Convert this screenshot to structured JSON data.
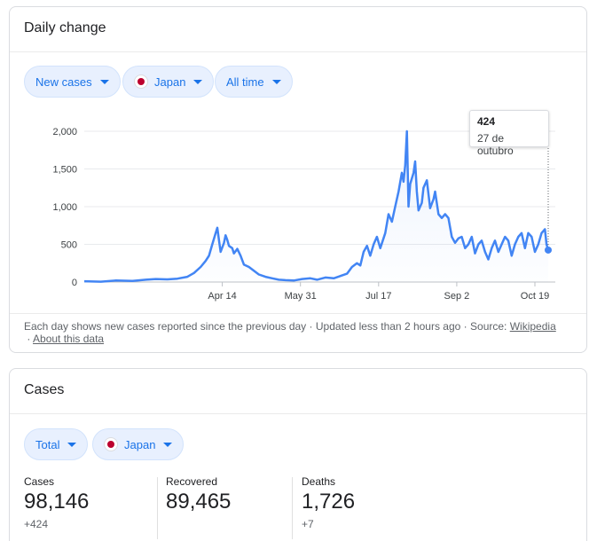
{
  "daily_card": {
    "title": "Daily change",
    "chips": {
      "metric": "New cases",
      "country": "Japan",
      "range": "All time"
    },
    "tooltip": {
      "value": "424",
      "date": "27 de outubro"
    },
    "footer": {
      "note": "Each day shows new cases reported since the previous day",
      "updated": "Updated less than 2 hours ago",
      "source_label": "Source:",
      "source_link": "Wikipedia",
      "about_link": "About this data"
    }
  },
  "cases_card": {
    "title": "Cases",
    "chips": {
      "metric": "Total",
      "country": "Japan"
    },
    "stats": [
      {
        "label": "Cases",
        "value": "98,146",
        "delta": "+424"
      },
      {
        "label": "Recovered",
        "value": "89,465",
        "delta": ""
      },
      {
        "label": "Deaths",
        "value": "1,726",
        "delta": "+7"
      }
    ]
  },
  "colors": {
    "line": "#4285f4",
    "chip_bg": "#e8f0fe",
    "chip_text": "#1a73e8",
    "flag_red": "#bc002d"
  },
  "chart_data": {
    "type": "area",
    "title": "",
    "xlabel": "",
    "ylabel": "",
    "ylim": [
      0,
      2000
    ],
    "y_ticks": [
      0,
      500,
      1000,
      1500,
      2000
    ],
    "y_tick_labels": [
      "0",
      "500",
      "1,000",
      "1,500",
      "2,000"
    ],
    "x_tick_labels": [
      "Apr 14",
      "May 31",
      "Jul 17",
      "Sep 2",
      "Oct 19"
    ],
    "x_start": "2020-01-22",
    "x_end": "2020-10-27",
    "x_ticks": [
      "2020-04-14",
      "2020-05-31",
      "2020-07-17",
      "2020-09-02",
      "2020-10-19"
    ],
    "grid": "horizontal",
    "series": [
      {
        "name": "New cases",
        "points": [
          [
            "2020-01-22",
            10
          ],
          [
            "2020-02-01",
            5
          ],
          [
            "2020-02-10",
            20
          ],
          [
            "2020-02-20",
            15
          ],
          [
            "2020-02-28",
            30
          ],
          [
            "2020-03-05",
            40
          ],
          [
            "2020-03-12",
            35
          ],
          [
            "2020-03-18",
            45
          ],
          [
            "2020-03-24",
            70
          ],
          [
            "2020-03-28",
            120
          ],
          [
            "2020-04-01",
            200
          ],
          [
            "2020-04-04",
            280
          ],
          [
            "2020-04-06",
            350
          ],
          [
            "2020-04-08",
            500
          ],
          [
            "2020-04-10",
            650
          ],
          [
            "2020-04-11",
            720
          ],
          [
            "2020-04-12",
            560
          ],
          [
            "2020-04-13",
            400
          ],
          [
            "2020-04-15",
            520
          ],
          [
            "2020-04-16",
            620
          ],
          [
            "2020-04-17",
            560
          ],
          [
            "2020-04-18",
            480
          ],
          [
            "2020-04-20",
            450
          ],
          [
            "2020-04-21",
            380
          ],
          [
            "2020-04-23",
            440
          ],
          [
            "2020-04-25",
            350
          ],
          [
            "2020-04-27",
            230
          ],
          [
            "2020-04-30",
            200
          ],
          [
            "2020-05-03",
            150
          ],
          [
            "2020-05-06",
            100
          ],
          [
            "2020-05-10",
            70
          ],
          [
            "2020-05-14",
            50
          ],
          [
            "2020-05-18",
            30
          ],
          [
            "2020-05-22",
            25
          ],
          [
            "2020-05-27",
            20
          ],
          [
            "2020-06-01",
            40
          ],
          [
            "2020-06-06",
            50
          ],
          [
            "2020-06-10",
            30
          ],
          [
            "2020-06-15",
            60
          ],
          [
            "2020-06-20",
            50
          ],
          [
            "2020-06-24",
            80
          ],
          [
            "2020-06-28",
            110
          ],
          [
            "2020-07-01",
            200
          ],
          [
            "2020-07-04",
            250
          ],
          [
            "2020-07-06",
            220
          ],
          [
            "2020-07-08",
            400
          ],
          [
            "2020-07-10",
            480
          ],
          [
            "2020-07-12",
            350
          ],
          [
            "2020-07-14",
            500
          ],
          [
            "2020-07-16",
            600
          ],
          [
            "2020-07-18",
            450
          ],
          [
            "2020-07-21",
            650
          ],
          [
            "2020-07-23",
            900
          ],
          [
            "2020-07-25",
            800
          ],
          [
            "2020-07-27",
            1000
          ],
          [
            "2020-07-29",
            1200
          ],
          [
            "2020-07-31",
            1450
          ],
          [
            "2020-08-01",
            1330
          ],
          [
            "2020-08-02",
            1550
          ],
          [
            "2020-08-03",
            2000
          ],
          [
            "2020-08-04",
            1000
          ],
          [
            "2020-08-05",
            1300
          ],
          [
            "2020-08-07",
            1450
          ],
          [
            "2020-08-08",
            1600
          ],
          [
            "2020-08-09",
            1200
          ],
          [
            "2020-08-10",
            950
          ],
          [
            "2020-08-12",
            1050
          ],
          [
            "2020-08-13",
            1250
          ],
          [
            "2020-08-15",
            1350
          ],
          [
            "2020-08-17",
            980
          ],
          [
            "2020-08-19",
            1100
          ],
          [
            "2020-08-20",
            1200
          ],
          [
            "2020-08-22",
            900
          ],
          [
            "2020-08-24",
            850
          ],
          [
            "2020-08-26",
            900
          ],
          [
            "2020-08-28",
            850
          ],
          [
            "2020-08-30",
            600
          ],
          [
            "2020-09-01",
            520
          ],
          [
            "2020-09-03",
            580
          ],
          [
            "2020-09-05",
            600
          ],
          [
            "2020-09-07",
            450
          ],
          [
            "2020-09-09",
            500
          ],
          [
            "2020-09-11",
            600
          ],
          [
            "2020-09-13",
            380
          ],
          [
            "2020-09-15",
            500
          ],
          [
            "2020-09-17",
            550
          ],
          [
            "2020-09-19",
            400
          ],
          [
            "2020-09-21",
            300
          ],
          [
            "2020-09-23",
            450
          ],
          [
            "2020-09-25",
            550
          ],
          [
            "2020-09-27",
            400
          ],
          [
            "2020-09-29",
            500
          ],
          [
            "2020-10-01",
            600
          ],
          [
            "2020-10-03",
            550
          ],
          [
            "2020-10-05",
            350
          ],
          [
            "2020-10-07",
            500
          ],
          [
            "2020-10-09",
            600
          ],
          [
            "2020-10-11",
            650
          ],
          [
            "2020-10-13",
            450
          ],
          [
            "2020-10-15",
            650
          ],
          [
            "2020-10-17",
            600
          ],
          [
            "2020-10-19",
            400
          ],
          [
            "2020-10-21",
            500
          ],
          [
            "2020-10-23",
            650
          ],
          [
            "2020-10-25",
            700
          ],
          [
            "2020-10-26",
            500
          ],
          [
            "2020-10-27",
            424
          ]
        ]
      }
    ]
  }
}
